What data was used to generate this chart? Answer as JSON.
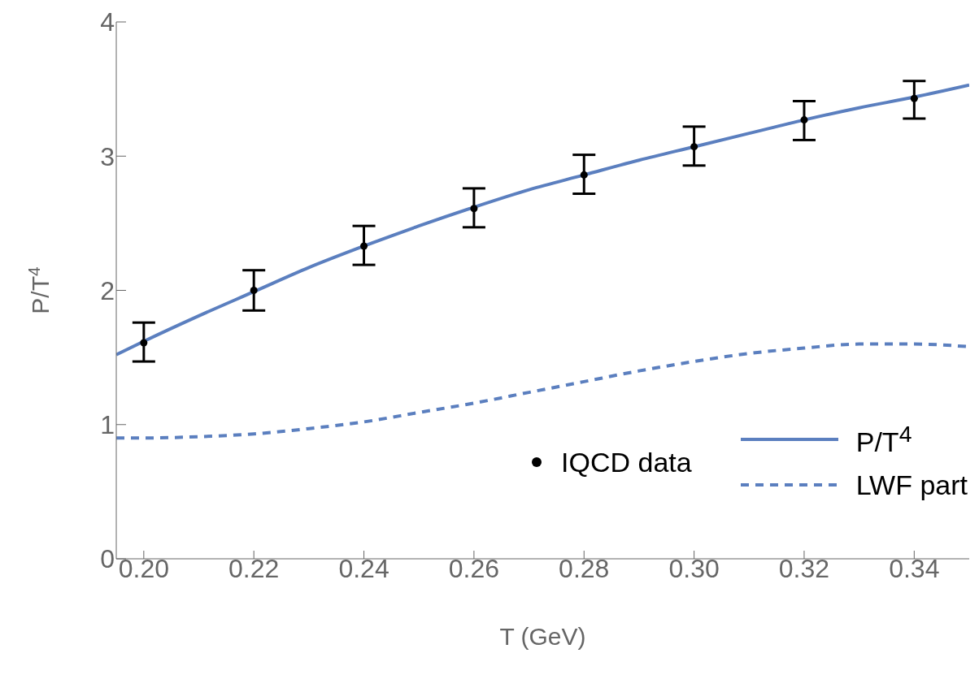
{
  "chart_data": {
    "type": "line",
    "xlabel": "T (GeV)",
    "ylabel": "P/T$^{4}$",
    "xlim": [
      0.195,
      0.35
    ],
    "xticks": [
      {
        "value": 0.2,
        "label": "0.20"
      },
      {
        "value": 0.22,
        "label": "0.22"
      },
      {
        "value": 0.24,
        "label": "0.24"
      },
      {
        "value": 0.26,
        "label": "0.26"
      },
      {
        "value": 0.28,
        "label": "0.28"
      },
      {
        "value": 0.3,
        "label": "0.30"
      },
      {
        "value": 0.32,
        "label": "0.32"
      },
      {
        "value": 0.34,
        "label": "0.34"
      }
    ],
    "ylim": [
      0,
      4
    ],
    "yticks": [
      0,
      1,
      2,
      3,
      4
    ],
    "grid": false,
    "legend": "bottom right",
    "series": [
      {
        "name": "IQCD data",
        "type": "scatter",
        "color": "#000000",
        "marker": "circle",
        "x": [
          0.2,
          0.22,
          0.24,
          0.26,
          0.28,
          0.3,
          0.32,
          0.34
        ],
        "values": [
          1.61,
          2.0,
          2.33,
          2.61,
          2.86,
          3.07,
          3.27,
          3.43
        ],
        "errors": [
          [
            1.47,
            1.76
          ],
          [
            1.85,
            2.15
          ],
          [
            2.19,
            2.48
          ],
          [
            2.47,
            2.76
          ],
          [
            2.72,
            3.01
          ],
          [
            2.93,
            3.22
          ],
          [
            3.12,
            3.41
          ],
          [
            3.28,
            3.56
          ]
        ]
      },
      {
        "name": "P/T$^{4}$",
        "color": "#5b7fbf",
        "line_style": "solid",
        "x": [
          0.195,
          0.2,
          0.21,
          0.22,
          0.23,
          0.24,
          0.25,
          0.26,
          0.27,
          0.28,
          0.29,
          0.3,
          0.31,
          0.32,
          0.33,
          0.34,
          0.35
        ],
        "values": [
          1.52,
          1.62,
          1.81,
          1.99,
          2.17,
          2.33,
          2.48,
          2.62,
          2.75,
          2.86,
          2.97,
          3.07,
          3.17,
          3.27,
          3.36,
          3.44,
          3.53
        ]
      },
      {
        "name": "LWF part",
        "color": "#5b7fbf",
        "line_style": "dashed",
        "x": [
          0.195,
          0.2,
          0.21,
          0.22,
          0.23,
          0.24,
          0.25,
          0.26,
          0.27,
          0.28,
          0.29,
          0.3,
          0.31,
          0.32,
          0.33,
          0.34,
          0.35
        ],
        "values": [
          0.9,
          0.9,
          0.91,
          0.93,
          0.97,
          1.02,
          1.09,
          1.16,
          1.24,
          1.32,
          1.4,
          1.47,
          1.53,
          1.57,
          1.6,
          1.6,
          1.58
        ]
      }
    ]
  }
}
